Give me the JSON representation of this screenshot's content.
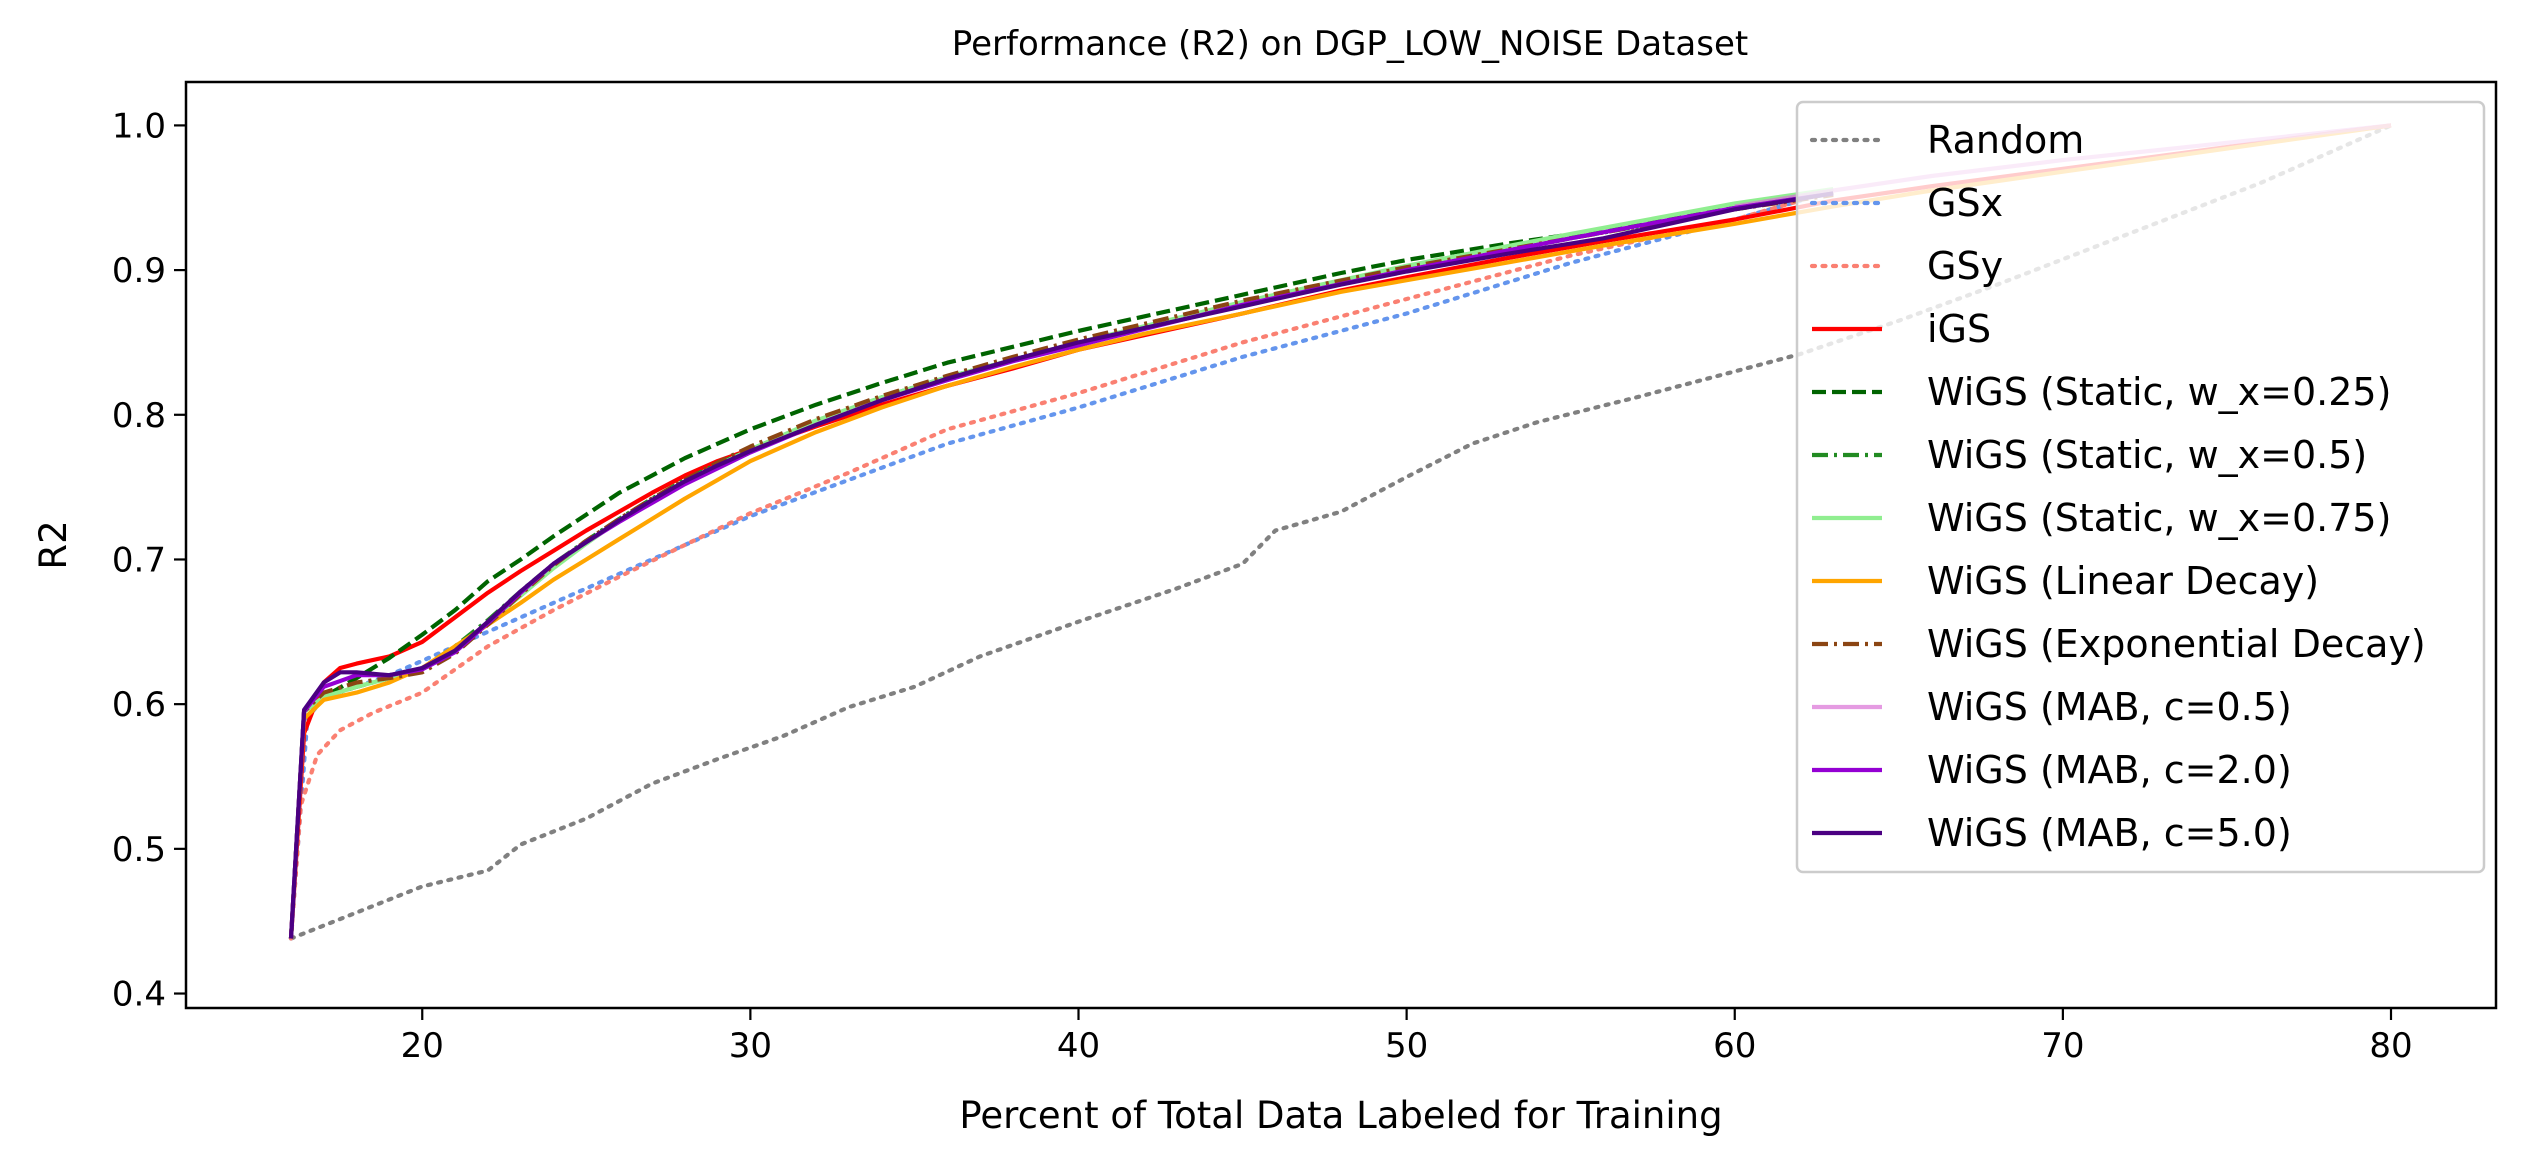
{
  "chart_data": {
    "type": "line",
    "title": "Performance (R2) on DGP_LOW_NOISE Dataset",
    "xlabel": "Percent of Total Data Labeled for Training",
    "ylabel": "R2",
    "xlim": [
      12.8,
      83.2
    ],
    "ylim": [
      0.39,
      1.03
    ],
    "xticks": [
      20,
      30,
      40,
      50,
      60,
      70,
      80
    ],
    "yticks": [
      0.4,
      0.5,
      0.6,
      0.7,
      0.8,
      0.9,
      1.0
    ],
    "xtick_labels": [
      "20",
      "30",
      "40",
      "50",
      "60",
      "70",
      "80"
    ],
    "ytick_labels": [
      "0.4",
      "0.5",
      "0.6",
      "0.7",
      "0.8",
      "0.9",
      "1.0"
    ],
    "grid": false,
    "legend_position": "top-right",
    "series": [
      {
        "name": "Random",
        "color": "#808080",
        "dash": "dotted",
        "opacity": 1,
        "x": [
          16,
          18,
          20,
          22,
          23,
          25,
          27,
          29,
          31,
          33,
          35,
          37,
          40,
          43,
          45,
          46,
          48,
          50,
          52,
          54,
          57,
          60,
          62,
          65,
          68,
          72,
          76,
          80
        ],
        "y": [
          0.438,
          0.456,
          0.474,
          0.485,
          0.503,
          0.521,
          0.545,
          0.562,
          0.578,
          0.598,
          0.612,
          0.633,
          0.657,
          0.68,
          0.697,
          0.72,
          0.733,
          0.757,
          0.78,
          0.795,
          0.812,
          0.83,
          0.842,
          0.865,
          0.89,
          0.925,
          0.96,
          1.0
        ]
      },
      {
        "name": "GSx",
        "color": "#6495ED",
        "dash": "dotted",
        "opacity": 1,
        "x": [
          16,
          16.5,
          17,
          18,
          19,
          20,
          22,
          24,
          26,
          28,
          30,
          33,
          36,
          40,
          45,
          50,
          55,
          60,
          62
        ],
        "y": [
          0.438,
          0.59,
          0.605,
          0.612,
          0.62,
          0.63,
          0.65,
          0.67,
          0.69,
          0.71,
          0.73,
          0.755,
          0.78,
          0.805,
          0.84,
          0.87,
          0.905,
          0.935,
          0.948
        ]
      },
      {
        "name": "GSy",
        "color": "#FA8072",
        "dash": "dotted",
        "opacity": 1,
        "x": [
          16,
          16.3,
          16.8,
          17.5,
          18.5,
          20,
          22,
          24,
          26,
          28,
          30,
          33,
          36,
          40,
          45,
          50,
          55,
          60,
          62
        ],
        "y": [
          0.438,
          0.53,
          0.565,
          0.582,
          0.594,
          0.608,
          0.64,
          0.665,
          0.688,
          0.71,
          0.732,
          0.76,
          0.79,
          0.815,
          0.85,
          0.88,
          0.91,
          0.935,
          0.948
        ]
      },
      {
        "name": "iGS",
        "color": "#FF0000",
        "dash": "solid",
        "opacity": 1,
        "x": [
          16,
          16.4,
          17,
          17.5,
          18,
          19,
          20,
          21,
          22,
          23,
          24,
          25,
          26,
          27,
          28,
          29,
          30,
          32,
          34,
          36,
          38,
          40,
          42,
          45,
          48,
          50,
          53,
          56,
          60,
          63,
          66,
          70,
          75,
          80
        ],
        "y": [
          0.438,
          0.58,
          0.615,
          0.625,
          0.628,
          0.633,
          0.643,
          0.66,
          0.677,
          0.692,
          0.706,
          0.72,
          0.733,
          0.746,
          0.758,
          0.768,
          0.776,
          0.792,
          0.807,
          0.82,
          0.832,
          0.845,
          0.855,
          0.87,
          0.886,
          0.895,
          0.908,
          0.92,
          0.935,
          0.948,
          0.958,
          0.97,
          0.985,
          1.0
        ]
      },
      {
        "name": "WiGS (Static, w_x=0.25)",
        "color": "#006400",
        "dash": "dashed",
        "opacity": 1,
        "x": [
          16,
          16.4,
          17,
          18,
          19,
          20,
          21,
          22,
          23,
          24,
          25,
          26,
          27,
          28,
          29,
          30,
          32,
          34,
          36,
          38,
          40,
          42,
          45,
          48,
          50,
          53,
          56,
          60,
          63
        ],
        "y": [
          0.438,
          0.595,
          0.605,
          0.618,
          0.632,
          0.648,
          0.665,
          0.685,
          0.7,
          0.716,
          0.731,
          0.746,
          0.758,
          0.77,
          0.78,
          0.79,
          0.807,
          0.822,
          0.836,
          0.847,
          0.858,
          0.868,
          0.883,
          0.898,
          0.907,
          0.918,
          0.928,
          0.943,
          0.953
        ]
      },
      {
        "name": "WiGS (Static, w_x=0.5)",
        "color": "#228B22",
        "dash": "dashdot",
        "opacity": 1,
        "x": [
          16,
          16.4,
          17,
          18,
          19,
          20,
          21,
          22,
          23,
          24,
          25,
          26,
          27,
          28,
          29,
          30,
          32,
          34,
          36,
          38,
          40,
          45,
          50,
          55,
          60,
          63
        ],
        "y": [
          0.438,
          0.595,
          0.605,
          0.612,
          0.618,
          0.625,
          0.64,
          0.658,
          0.678,
          0.697,
          0.713,
          0.728,
          0.742,
          0.755,
          0.766,
          0.776,
          0.795,
          0.812,
          0.826,
          0.838,
          0.85,
          0.877,
          0.9,
          0.922,
          0.942,
          0.953
        ]
      },
      {
        "name": "WiGS (Static, w_x=0.75)",
        "color": "#90EE90",
        "dash": "solid",
        "opacity": 1,
        "x": [
          16,
          16.4,
          17,
          18,
          19,
          20,
          21,
          22,
          23,
          24,
          25,
          26,
          27,
          28,
          29,
          30,
          32,
          34,
          36,
          38,
          40,
          45,
          50,
          55,
          60,
          63
        ],
        "y": [
          0.438,
          0.595,
          0.605,
          0.612,
          0.618,
          0.625,
          0.638,
          0.656,
          0.675,
          0.694,
          0.711,
          0.727,
          0.741,
          0.754,
          0.765,
          0.776,
          0.796,
          0.812,
          0.826,
          0.838,
          0.85,
          0.878,
          0.903,
          0.925,
          0.946,
          0.956
        ]
      },
      {
        "name": "WiGS (Linear Decay)",
        "color": "#FFA500",
        "dash": "solid",
        "opacity": 1,
        "x": [
          16,
          16.4,
          17,
          18,
          19,
          20,
          21,
          22,
          23,
          24,
          25,
          26,
          27,
          28,
          29,
          30,
          32,
          34,
          36,
          38,
          40,
          42,
          45,
          48,
          50,
          53,
          56,
          60,
          63,
          66,
          70,
          75,
          80
        ],
        "y": [
          0.438,
          0.59,
          0.603,
          0.608,
          0.615,
          0.625,
          0.64,
          0.655,
          0.67,
          0.686,
          0.7,
          0.714,
          0.728,
          0.742,
          0.755,
          0.768,
          0.788,
          0.805,
          0.82,
          0.833,
          0.845,
          0.856,
          0.87,
          0.885,
          0.893,
          0.905,
          0.917,
          0.932,
          0.944,
          0.955,
          0.968,
          0.984,
          1.0
        ]
      },
      {
        "name": "WiGS (Exponential Decay)",
        "color": "#8B4513",
        "dash": "dashdot",
        "opacity": 1,
        "x": [
          16,
          16.4,
          17,
          18,
          19,
          20,
          21,
          22,
          23,
          24,
          25,
          26,
          27,
          28,
          29,
          30,
          32,
          34,
          36,
          38,
          40,
          45,
          50,
          55,
          60,
          63
        ],
        "y": [
          0.438,
          0.595,
          0.608,
          0.615,
          0.618,
          0.622,
          0.635,
          0.655,
          0.676,
          0.696,
          0.713,
          0.728,
          0.742,
          0.755,
          0.767,
          0.778,
          0.797,
          0.813,
          0.827,
          0.84,
          0.852,
          0.879,
          0.902,
          0.922,
          0.942,
          0.952
        ]
      },
      {
        "name": "WiGS (MAB, c=0.5)",
        "color": "#DA70D6",
        "dash": "solid",
        "opacity": 0.7,
        "x": [
          60,
          63,
          66,
          70,
          75,
          80
        ],
        "y": [
          0.944,
          0.955,
          0.965,
          0.976,
          0.988,
          1.0
        ]
      },
      {
        "name": "WiGS (MAB, c=2.0)",
        "color": "#9400D3",
        "dash": "solid",
        "opacity": 1,
        "x": [
          16,
          16.4,
          17,
          18,
          19,
          20,
          21,
          22,
          23,
          24,
          25,
          26,
          27,
          28,
          29,
          30,
          32,
          34,
          36,
          38,
          40,
          45,
          50,
          55,
          60,
          63
        ],
        "y": [
          0.438,
          0.595,
          0.612,
          0.62,
          0.62,
          0.624,
          0.636,
          0.656,
          0.677,
          0.697,
          0.712,
          0.726,
          0.739,
          0.752,
          0.763,
          0.774,
          0.793,
          0.81,
          0.824,
          0.837,
          0.848,
          0.876,
          0.9,
          0.922,
          0.943,
          0.953
        ]
      },
      {
        "name": "WiGS (MAB, c=5.0)",
        "color": "#4B0082",
        "dash": "solid",
        "opacity": 1,
        "x": [
          16,
          16.4,
          17,
          17.5,
          18,
          19,
          20,
          21,
          22,
          23,
          24,
          25,
          26,
          27,
          28,
          29,
          30,
          32,
          34,
          36,
          38,
          40,
          42,
          45,
          48,
          50,
          53,
          56,
          60,
          63
        ],
        "y": [
          0.438,
          0.596,
          0.615,
          0.622,
          0.622,
          0.62,
          0.625,
          0.637,
          0.657,
          0.678,
          0.697,
          0.712,
          0.727,
          0.741,
          0.754,
          0.765,
          0.775,
          0.793,
          0.81,
          0.825,
          0.838,
          0.85,
          0.86,
          0.875,
          0.89,
          0.899,
          0.911,
          0.922,
          0.942,
          0.953
        ]
      }
    ]
  }
}
